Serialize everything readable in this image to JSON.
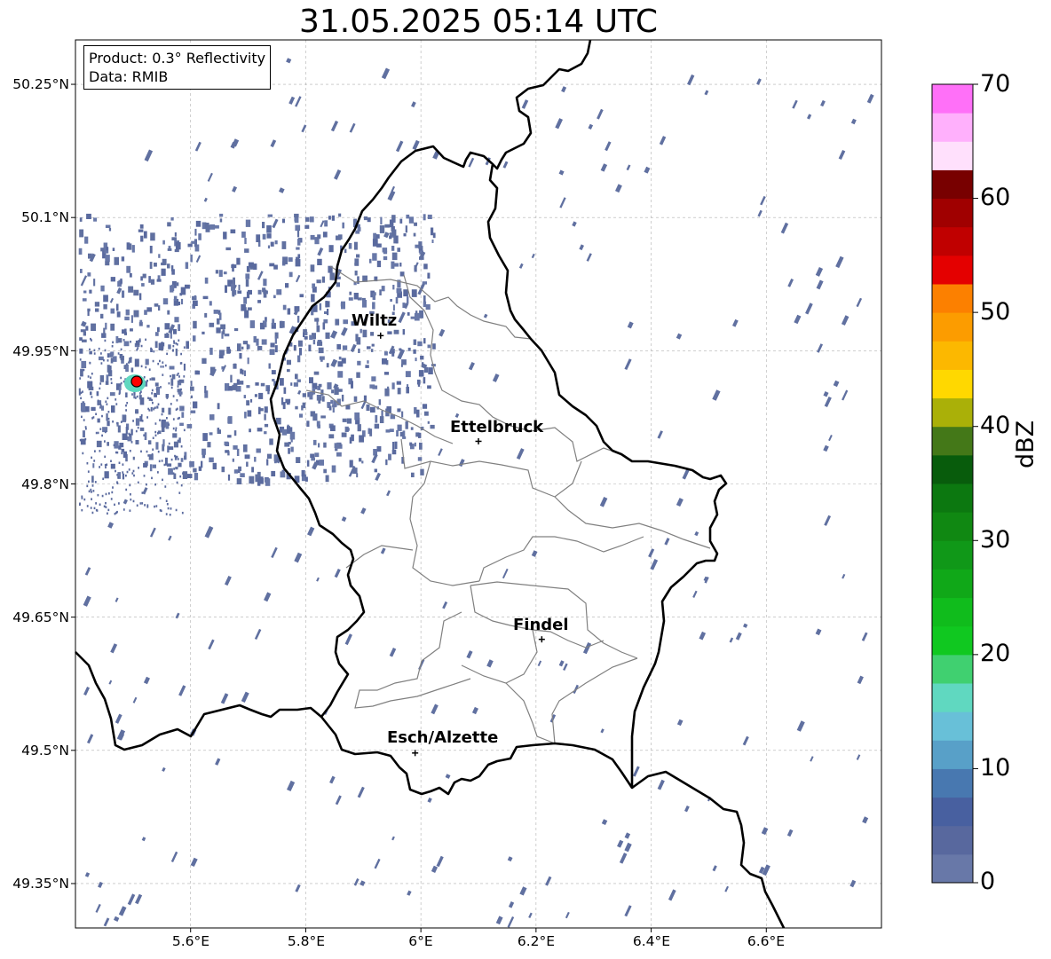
{
  "title": "31.05.2025 05:14 UTC",
  "info": {
    "product": "Product: 0.3° Reflectivity",
    "data": "Data: RMIB"
  },
  "axes": {
    "y_labels": [
      "50.25°N",
      "50.1°N",
      "49.95°N",
      "49.8°N",
      "49.65°N",
      "49.5°N",
      "49.35°N"
    ],
    "x_labels": [
      "5.6°E",
      "5.8°E",
      "6°E",
      "6.2°E",
      "6.4°E",
      "6.6°E"
    ],
    "lon_range": [
      5.4,
      6.8
    ],
    "lat_range": [
      49.3,
      50.3
    ]
  },
  "cities": [
    {
      "name": "Wiltz",
      "lon": 5.93,
      "lat": 49.967
    },
    {
      "name": "Ettelbruck",
      "lon": 6.1,
      "lat": 49.848
    },
    {
      "name": "Findel",
      "lon": 6.21,
      "lat": 49.625
    },
    {
      "name": "Esch/Alzette",
      "lon": 5.99,
      "lat": 49.497
    }
  ],
  "colorbar": {
    "label": "dBZ",
    "ticks": [
      "0",
      "10",
      "20",
      "30",
      "40",
      "50",
      "60",
      "70"
    ],
    "min": 0,
    "max": 70,
    "step": 2.5,
    "colors": [
      "#6878a8",
      "#58689e",
      "#4860a0",
      "#4878b0",
      "#58a0c8",
      "#68c0d8",
      "#60d8c0",
      "#40d070",
      "#10c820",
      "#10bc1c",
      "#10a818",
      "#109818",
      "#108812",
      "#0c7810",
      "#085c0c",
      "#447818",
      "#aab008",
      "#ffd800",
      "#fcb800",
      "#fc9c00",
      "#fc8000",
      "#e40000",
      "#c00000",
      "#a00000",
      "#780000",
      "#ffe0fc",
      "#ffb0fc",
      "#ff70f8",
      "#f040f0"
    ]
  },
  "radar": {
    "site_marker_color": "#ff0000"
  }
}
